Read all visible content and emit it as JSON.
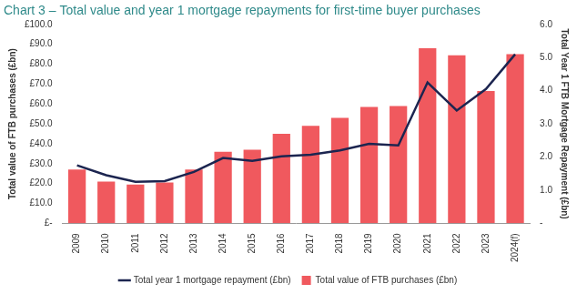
{
  "chart_data": {
    "type": "bar",
    "title": "Chart 3 – Total value and year 1 mortgage repayments for first-time buyer purchases",
    "y_label": "Total value of FTB purchases (£bn)",
    "y2_label": "Total Year 1 FTB Mortgage Repayment (£bn)",
    "categories": [
      "2009",
      "2010",
      "2011",
      "2012",
      "2013",
      "2014",
      "2015",
      "2016",
      "2017",
      "2018",
      "2019",
      "2020",
      "2021",
      "2022",
      "2023",
      "2024(f)"
    ],
    "series": [
      {
        "name": "Total value of FTB purchases (£bn)",
        "type": "bar",
        "color": "#f0595e",
        "values": [
          27,
          21,
          19.5,
          20.5,
          27,
          36,
          37,
          45,
          49,
          53,
          58.5,
          59,
          88,
          84.5,
          66.5,
          85
        ]
      },
      {
        "name": "Total year 1 mortgage repayment (£bn)",
        "type": "line",
        "color": "#1c2550",
        "axis": "y2",
        "values": [
          1.75,
          1.45,
          1.25,
          1.27,
          1.55,
          1.97,
          1.88,
          2.02,
          2.07,
          2.2,
          2.4,
          2.35,
          4.25,
          3.4,
          4.05,
          5.1
        ]
      }
    ],
    "ylim": [
      0,
      100
    ],
    "yticks": [
      {
        "value": 0,
        "label": "£-"
      },
      {
        "value": 10,
        "label": "£10.0"
      },
      {
        "value": 20,
        "label": "£20.0"
      },
      {
        "value": 30,
        "label": "£30.0"
      },
      {
        "value": 40,
        "label": "£40.0"
      },
      {
        "value": 50,
        "label": "£50.0"
      },
      {
        "value": 60,
        "label": "£60.0"
      },
      {
        "value": 70,
        "label": "£70.0"
      },
      {
        "value": 80,
        "label": "£80.0"
      },
      {
        "value": 90,
        "label": "£90.0"
      },
      {
        "value": 100,
        "label": "£100.0"
      }
    ],
    "y2lim": [
      0,
      6
    ],
    "y2ticks": [
      {
        "value": 0,
        "label": "-"
      },
      {
        "value": 1,
        "label": "1.0"
      },
      {
        "value": 2,
        "label": "2.0"
      },
      {
        "value": 3,
        "label": "3.0"
      },
      {
        "value": 4,
        "label": "4.0"
      },
      {
        "value": 5,
        "label": "5.0"
      },
      {
        "value": 6,
        "label": "6.0"
      }
    ],
    "grid": false,
    "legend": "bottom"
  }
}
